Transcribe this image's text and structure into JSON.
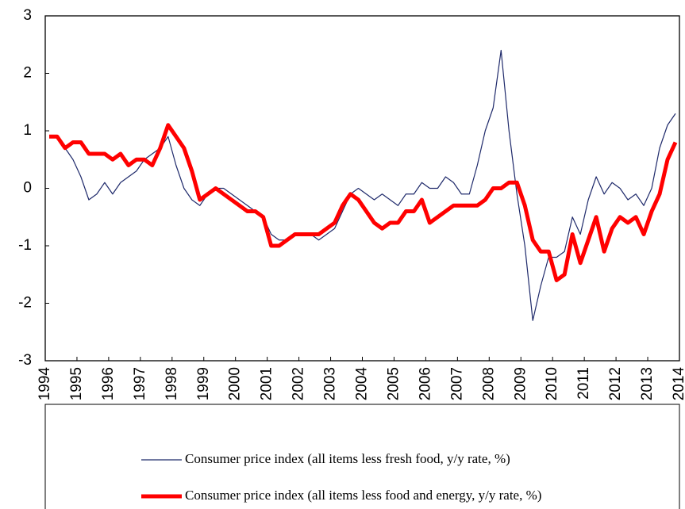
{
  "chart_data": {
    "type": "line",
    "x": [
      1994.125,
      1994.375,
      1994.625,
      1994.875,
      1995.125,
      1995.375,
      1995.625,
      1995.875,
      1996.125,
      1996.375,
      1996.625,
      1996.875,
      1997.125,
      1997.375,
      1997.625,
      1997.875,
      1998.125,
      1998.375,
      1998.625,
      1998.875,
      1999.125,
      1999.375,
      1999.625,
      1999.875,
      2000.125,
      2000.375,
      2000.625,
      2000.875,
      2001.125,
      2001.375,
      2001.625,
      2001.875,
      2002.125,
      2002.375,
      2002.625,
      2002.875,
      2003.125,
      2003.375,
      2003.625,
      2003.875,
      2004.125,
      2004.375,
      2004.625,
      2004.875,
      2005.125,
      2005.375,
      2005.625,
      2005.875,
      2006.125,
      2006.375,
      2006.625,
      2006.875,
      2007.125,
      2007.375,
      2007.625,
      2007.875,
      2008.125,
      2008.375,
      2008.625,
      2008.875,
      2009.125,
      2009.375,
      2009.625,
      2009.875,
      2010.125,
      2010.375,
      2010.625,
      2010.875,
      2011.125,
      2011.375,
      2011.625,
      2011.875,
      2012.125,
      2012.375,
      2012.625,
      2012.875,
      2013.125,
      2013.375,
      2013.625,
      2013.875
    ],
    "series": [
      {
        "name": "Consumer price index (all items less fresh food, y/y rate, %)",
        "color": "#1f2a6b",
        "width": 1.2,
        "values": [
          0.9,
          0.9,
          0.7,
          0.5,
          0.2,
          -0.2,
          -0.1,
          0.1,
          -0.1,
          0.1,
          0.2,
          0.3,
          0.5,
          0.6,
          0.7,
          0.9,
          0.4,
          0.0,
          -0.2,
          -0.3,
          -0.1,
          0.0,
          0.0,
          -0.1,
          -0.2,
          -0.3,
          -0.4,
          -0.5,
          -0.8,
          -0.9,
          -0.9,
          -0.8,
          -0.8,
          -0.8,
          -0.9,
          -0.8,
          -0.7,
          -0.4,
          -0.1,
          0.0,
          -0.1,
          -0.2,
          -0.1,
          -0.2,
          -0.3,
          -0.1,
          -0.1,
          0.1,
          0.0,
          0.0,
          0.2,
          0.1,
          -0.1,
          -0.1,
          0.4,
          1.0,
          1.4,
          2.4,
          1.0,
          -0.1,
          -1.0,
          -2.3,
          -1.7,
          -1.2,
          -1.2,
          -1.1,
          -0.5,
          -0.8,
          -0.2,
          0.2,
          -0.1,
          0.1,
          0.0,
          -0.2,
          -0.1,
          -0.3,
          0.0,
          0.7,
          1.1,
          1.3
        ]
      },
      {
        "name": "Consumer price index (all items less food and energy, y/y rate, %)",
        "color": "#ff0000",
        "width": 5,
        "values": [
          0.9,
          0.9,
          0.7,
          0.8,
          0.8,
          0.6,
          0.6,
          0.6,
          0.5,
          0.6,
          0.4,
          0.5,
          0.5,
          0.4,
          0.7,
          1.1,
          0.9,
          0.7,
          0.3,
          -0.2,
          -0.1,
          0.0,
          -0.1,
          -0.2,
          -0.3,
          -0.4,
          -0.4,
          -0.5,
          -1.0,
          -1.0,
          -0.9,
          -0.8,
          -0.8,
          -0.8,
          -0.8,
          -0.7,
          -0.6,
          -0.3,
          -0.1,
          -0.2,
          -0.4,
          -0.6,
          -0.7,
          -0.6,
          -0.6,
          -0.4,
          -0.4,
          -0.2,
          -0.6,
          -0.5,
          -0.4,
          -0.3,
          -0.3,
          -0.3,
          -0.3,
          -0.2,
          0.0,
          0.0,
          0.1,
          0.1,
          -0.3,
          -0.9,
          -1.1,
          -1.1,
          -1.6,
          -1.5,
          -0.8,
          -1.3,
          -0.9,
          -0.5,
          -1.1,
          -0.7,
          -0.5,
          -0.6,
          -0.5,
          -0.8,
          -0.4,
          -0.1,
          0.5,
          0.8
        ]
      }
    ],
    "xlim": [
      1994,
      2014
    ],
    "xticks": [
      1994,
      1995,
      1996,
      1997,
      1998,
      1999,
      2000,
      2001,
      2002,
      2003,
      2004,
      2005,
      2006,
      2007,
      2008,
      2009,
      2010,
      2011,
      2012,
      2013,
      2014
    ],
    "ylim": [
      -3,
      3
    ],
    "yticks": [
      -3,
      -2,
      -1,
      0,
      1,
      2,
      3
    ],
    "grid": false
  }
}
